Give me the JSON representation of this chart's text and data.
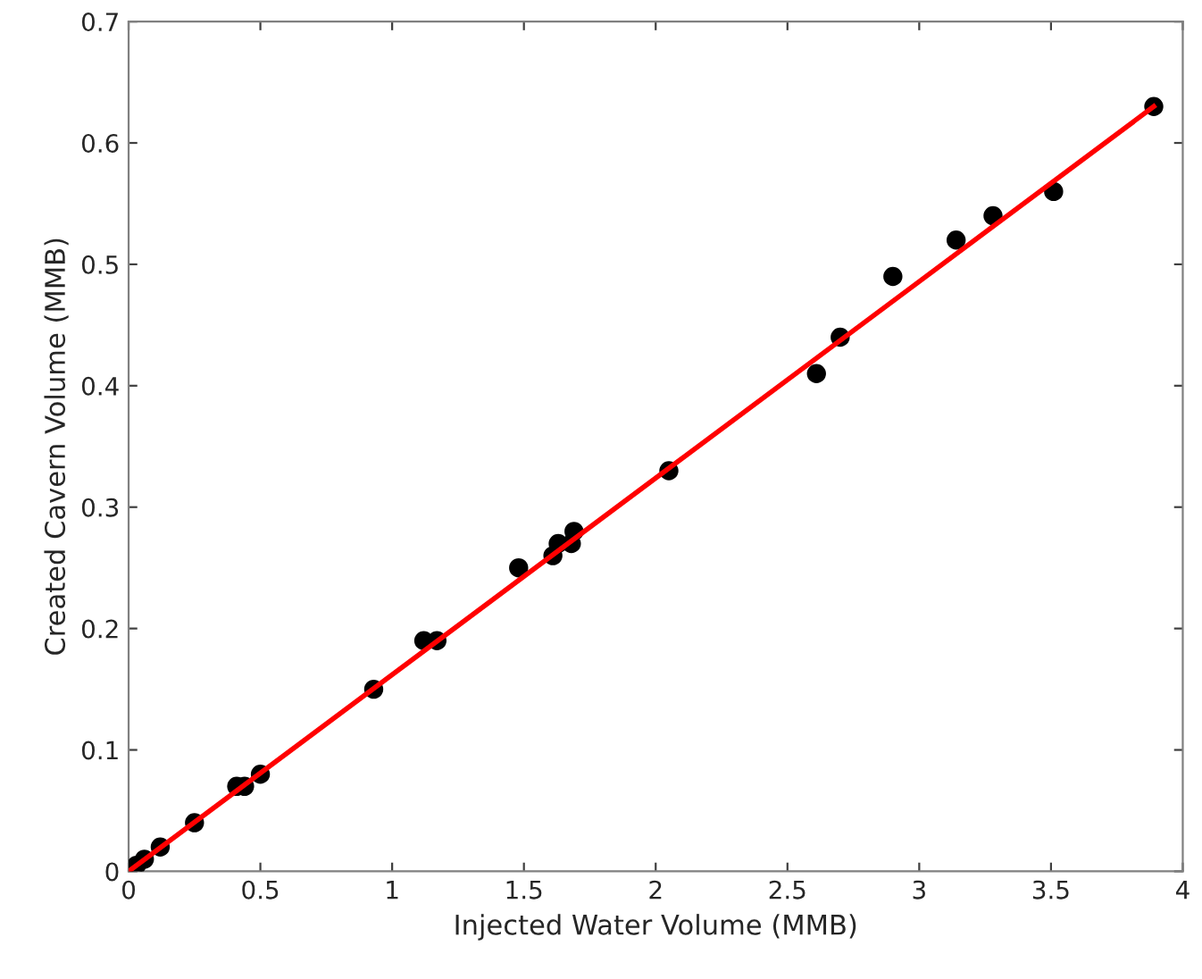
{
  "chart_data": {
    "type": "scatter",
    "xlabel": "Injected Water Volume (MMB)",
    "ylabel": "Created Cavern Volume (MMB)",
    "xlim": [
      0,
      4
    ],
    "ylim": [
      0,
      0.7
    ],
    "xticks": [
      0,
      0.5,
      1,
      1.5,
      2,
      2.5,
      3,
      3.5,
      4
    ],
    "yticks": [
      0,
      0.1,
      0.2,
      0.3,
      0.4,
      0.5,
      0.6,
      0.7
    ],
    "grid": false,
    "series": [
      {
        "color": "#000000",
        "marker": "circle",
        "x": [
          0.03,
          0.06,
          0.12,
          0.25,
          0.41,
          0.44,
          0.5,
          0.93,
          1.12,
          1.17,
          1.48,
          1.61,
          1.63,
          1.68,
          1.69,
          2.05,
          2.61,
          2.7,
          2.9,
          3.14,
          3.28,
          3.51,
          3.89
        ],
        "values": [
          0.005,
          0.01,
          0.02,
          0.04,
          0.07,
          0.07,
          0.08,
          0.15,
          0.19,
          0.19,
          0.25,
          0.26,
          0.27,
          0.27,
          0.28,
          0.33,
          0.41,
          0.44,
          0.49,
          0.52,
          0.54,
          0.56,
          0.63
        ]
      },
      {
        "type": "line",
        "color": "#ff0000",
        "line_style": "solid",
        "x": [
          0,
          3.89
        ],
        "values": [
          0,
          0.63
        ]
      }
    ]
  }
}
